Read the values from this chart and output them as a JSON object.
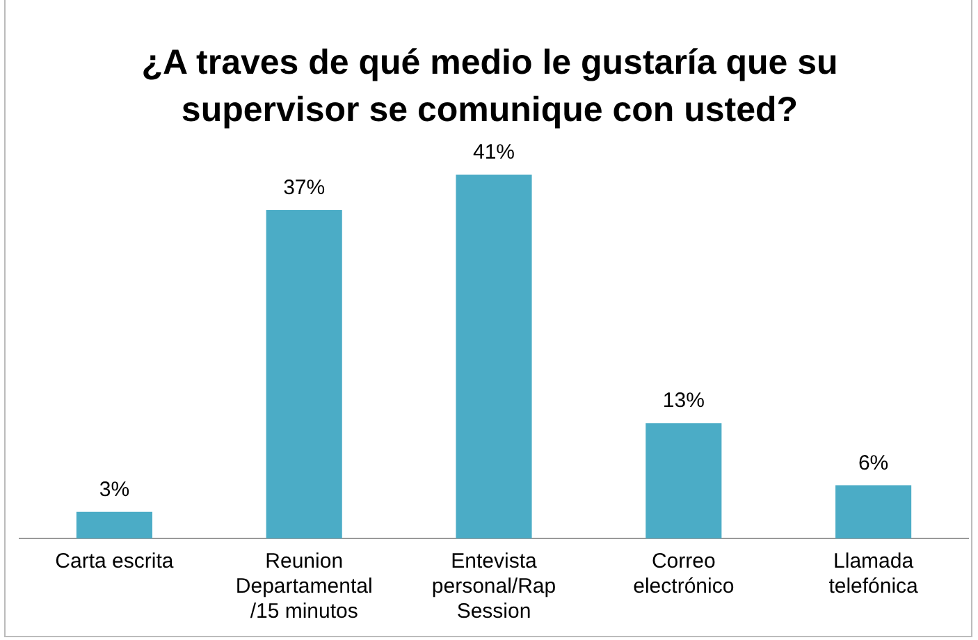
{
  "chart_data": {
    "type": "bar",
    "title": "¿A traves de qué medio le gustaría que su supervisor se comunique con usted?",
    "categories": [
      "Carta escrita",
      "Reunion Departamental /15 minutos",
      "Entevista personal/Rap Session",
      "Correo electrónico",
      "Llamada telefónica"
    ],
    "values": [
      3,
      37,
      41,
      13,
      6
    ],
    "value_labels": [
      "3%",
      "37%",
      "41%",
      "13%",
      "6%"
    ],
    "color": "#4bacc6",
    "relative": false,
    "grid": false,
    "legend": false
  }
}
